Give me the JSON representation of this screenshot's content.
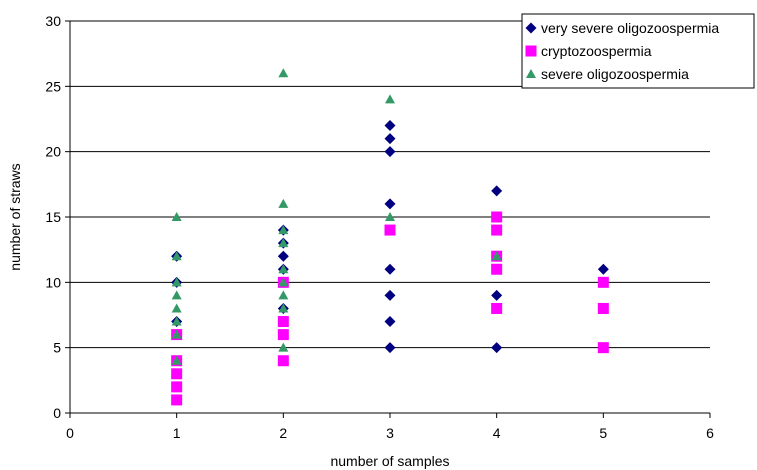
{
  "chart_data": {
    "type": "scatter",
    "xlabel": "number of samples",
    "ylabel": "number of straws",
    "xlim": [
      0,
      6
    ],
    "ylim": [
      0,
      30
    ],
    "x_ticks": [
      0,
      1,
      2,
      3,
      4,
      5,
      6
    ],
    "y_ticks": [
      0,
      5,
      10,
      15,
      20,
      25,
      30
    ],
    "grid": "horizontal",
    "legend_position": "top-right",
    "series": [
      {
        "name": "very severe oligozoospermia",
        "marker": "diamond",
        "color": "#000080",
        "points": [
          [
            1,
            12
          ],
          [
            1,
            10
          ],
          [
            1,
            7
          ],
          [
            1,
            6
          ],
          [
            2,
            14
          ],
          [
            2,
            13
          ],
          [
            2,
            12
          ],
          [
            2,
            11
          ],
          [
            2,
            10
          ],
          [
            2,
            8
          ],
          [
            3,
            22
          ],
          [
            3,
            21
          ],
          [
            3,
            20
          ],
          [
            3,
            16
          ],
          [
            3,
            11
          ],
          [
            3,
            9
          ],
          [
            3,
            7
          ],
          [
            3,
            5
          ],
          [
            4,
            17
          ],
          [
            4,
            12
          ],
          [
            4,
            9
          ],
          [
            4,
            5
          ],
          [
            5,
            11
          ]
        ]
      },
      {
        "name": "cryptozoospermia",
        "marker": "square",
        "color": "#FF00FF",
        "points": [
          [
            1,
            6
          ],
          [
            1,
            4
          ],
          [
            1,
            3
          ],
          [
            1,
            2
          ],
          [
            1,
            1
          ],
          [
            2,
            10
          ],
          [
            2,
            7
          ],
          [
            2,
            6
          ],
          [
            2,
            4
          ],
          [
            3,
            14
          ],
          [
            4,
            15
          ],
          [
            4,
            14
          ],
          [
            4,
            12
          ],
          [
            4,
            11
          ],
          [
            4,
            8
          ],
          [
            5,
            10
          ],
          [
            5,
            8
          ],
          [
            5,
            5
          ]
        ]
      },
      {
        "name": "severe oligozoospermia",
        "marker": "triangle",
        "color": "#339966",
        "points": [
          [
            1,
            15
          ],
          [
            1,
            12
          ],
          [
            1,
            10
          ],
          [
            1,
            9
          ],
          [
            1,
            8
          ],
          [
            1,
            7
          ],
          [
            1,
            6
          ],
          [
            1,
            4
          ],
          [
            2,
            26
          ],
          [
            2,
            16
          ],
          [
            2,
            14
          ],
          [
            2,
            13
          ],
          [
            2,
            11
          ],
          [
            2,
            10
          ],
          [
            2,
            9
          ],
          [
            2,
            8
          ],
          [
            2,
            5
          ],
          [
            3,
            24
          ],
          [
            3,
            15
          ],
          [
            4,
            12
          ]
        ]
      }
    ]
  }
}
